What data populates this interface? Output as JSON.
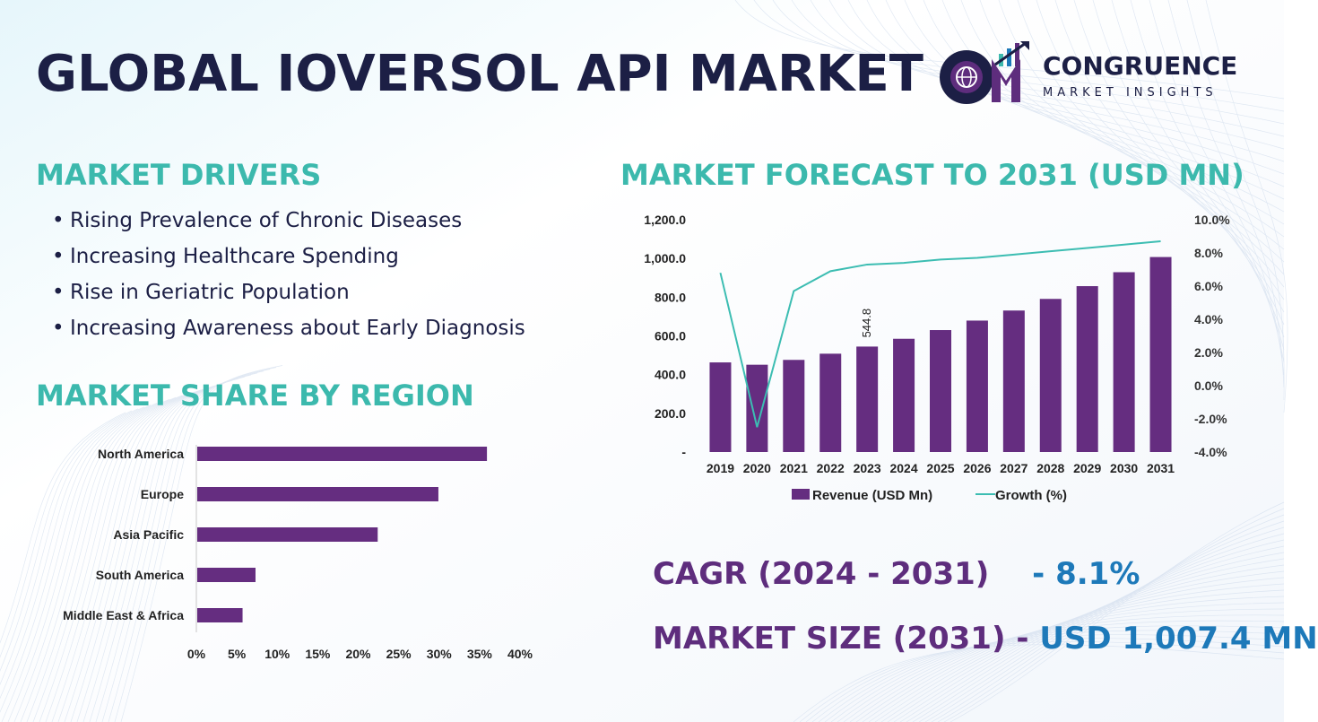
{
  "title": "GLOBAL IOVERSOL API MARKET",
  "logo": {
    "name": "CONGRUENCE",
    "tagline": "MARKET INSIGHTS"
  },
  "drivers": {
    "heading": "MARKET DRIVERS",
    "items": [
      "Rising Prevalence of Chronic Diseases",
      "Increasing Healthcare Spending",
      "Rise in Geriatric Population",
      "Increasing Awareness about Early Diagnosis"
    ]
  },
  "region": {
    "heading": "MARKET SHARE BY REGION"
  },
  "forecast": {
    "heading": "MARKET FORECAST TO 2031 (USD MN)"
  },
  "cagr": {
    "label": "CAGR (2024 - 2031)",
    "value": "- 8.1%"
  },
  "market_size": {
    "label": "MARKET SIZE (2031)",
    "dash": "-",
    "value": "USD 1,007.4 MN"
  },
  "colors": {
    "bar": "#652d80",
    "line": "#3cbdb2",
    "title": "#1c1f45",
    "accent": "#3cb9ad"
  },
  "chart_data": [
    {
      "type": "bar",
      "orientation": "horizontal",
      "categories": [
        "North America",
        "Europe",
        "Asia Pacific",
        "South America",
        "Middle East & Africa"
      ],
      "values": [
        35.8,
        29.8,
        22.3,
        7.2,
        5.6
      ],
      "unit": "%",
      "xlim": [
        0,
        40
      ],
      "x_ticks": [
        "0%",
        "5%",
        "10%",
        "15%",
        "20%",
        "25%",
        "30%",
        "35%",
        "40%"
      ]
    },
    {
      "type": "bar+line",
      "x": [
        "2019",
        "2020",
        "2021",
        "2022",
        "2023",
        "2024",
        "2025",
        "2026",
        "2027",
        "2028",
        "2029",
        "2030",
        "2031"
      ],
      "series": [
        {
          "name": "Revenue (USD Mn)",
          "type": "bar",
          "axis": "left",
          "values": [
            463.0,
            451.0,
            476.0,
            508.0,
            544.8,
            585.0,
            630.0,
            679.0,
            731.0,
            791.0,
            857.0,
            929.0,
            1007.4
          ]
        },
        {
          "name": "Growth (%)",
          "type": "line",
          "axis": "right",
          "values": [
            6.8,
            -2.5,
            5.7,
            6.9,
            7.3,
            7.4,
            7.6,
            7.7,
            7.9,
            8.1,
            8.3,
            8.5,
            8.7
          ]
        }
      ],
      "y_left": {
        "lim": [
          0,
          1200
        ],
        "ticks": [
          "-",
          "200.0",
          "400.0",
          "600.0",
          "800.0",
          "1,000.0",
          "1,200.0"
        ]
      },
      "y_right": {
        "lim": [
          -4,
          10
        ],
        "ticks": [
          "-4.0%",
          "-2.0%",
          "0.0%",
          "2.0%",
          "4.0%",
          "6.0%",
          "8.0%",
          "10.0%"
        ]
      },
      "data_labels": [
        {
          "index": 4,
          "text": "544.8"
        }
      ],
      "legend": "bottom"
    }
  ]
}
